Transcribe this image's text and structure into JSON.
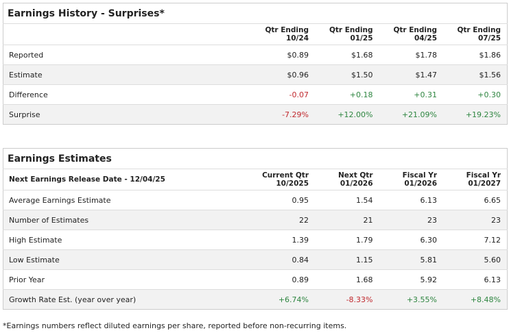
{
  "history": {
    "title": "Earnings History - Surprises*",
    "headers": [
      [
        "Qtr Ending",
        "10/24"
      ],
      [
        "Qtr Ending",
        "01/25"
      ],
      [
        "Qtr Ending",
        "04/25"
      ],
      [
        "Qtr Ending",
        "07/25"
      ]
    ],
    "rows": [
      [
        "Reported",
        "$0.89",
        "$1.68",
        "$1.78",
        "$1.86"
      ],
      [
        "Estimate",
        "$0.96",
        "$1.50",
        "$1.47",
        "$1.56"
      ],
      [
        "Difference",
        "-0.07",
        "+0.18",
        "+0.31",
        "+0.30"
      ],
      [
        "Surprise",
        "-7.29%",
        "+12.00%",
        "+21.09%",
        "+19.23%"
      ]
    ]
  },
  "estimates": {
    "title": "Earnings Estimates",
    "release": "Next Earnings Release Date - 12/04/25",
    "headers": [
      [
        "Current Qtr",
        "10/2025"
      ],
      [
        "Next Qtr",
        "01/2026"
      ],
      [
        "Fiscal Yr",
        "01/2026"
      ],
      [
        "Fiscal Yr",
        "01/2027"
      ]
    ],
    "rows": [
      [
        "Average Earnings Estimate",
        "0.95",
        "1.54",
        "6.13",
        "6.65"
      ],
      [
        "Number of Estimates",
        "22",
        "21",
        "23",
        "23"
      ],
      [
        "High Estimate",
        "1.39",
        "1.79",
        "6.30",
        "7.12"
      ],
      [
        "Low Estimate",
        "0.84",
        "1.15",
        "5.81",
        "5.60"
      ],
      [
        "Prior Year",
        "0.89",
        "1.68",
        "5.92",
        "6.13"
      ],
      [
        "Growth Rate Est. (year over year)",
        "+6.74%",
        "-8.33%",
        "+3.55%",
        "+8.48%"
      ]
    ]
  },
  "footnote": "*Earnings numbers reflect diluted earnings per share, reported before non-recurring items."
}
